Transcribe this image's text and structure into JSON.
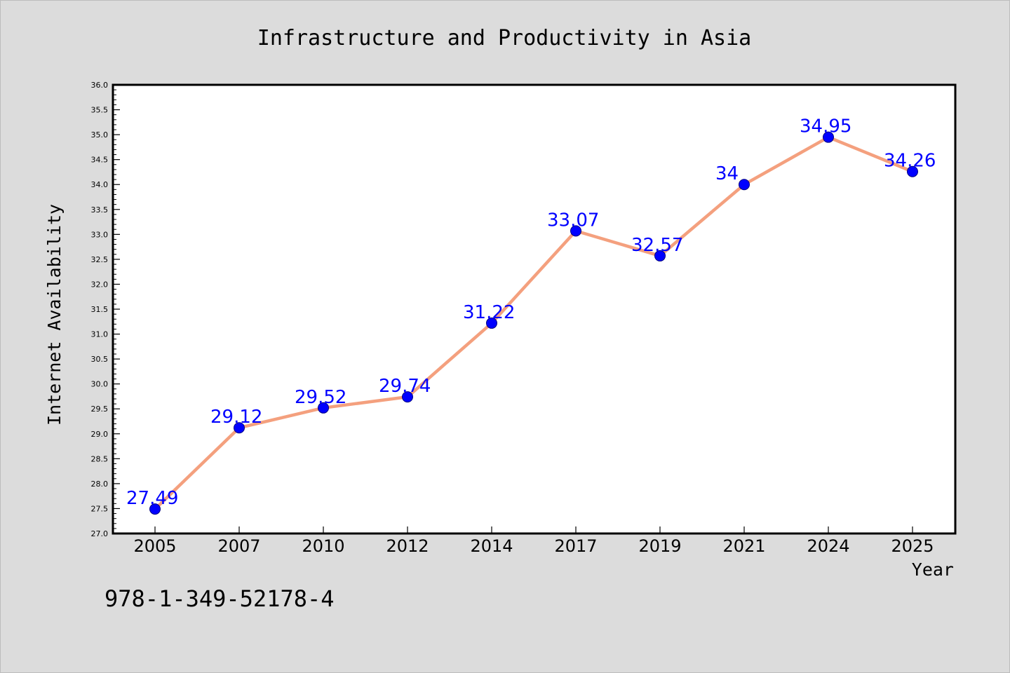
{
  "chart_data": {
    "type": "line",
    "title": "Infrastructure and Productivity in Asia",
    "xlabel": "Year",
    "ylabel": "Internet Availability",
    "categories": [
      "2005",
      "2007",
      "2010",
      "2012",
      "2014",
      "2017",
      "2019",
      "2021",
      "2024",
      "2025"
    ],
    "series": [
      {
        "values": [
          27.49,
          29.12,
          29.52,
          29.74,
          31.22,
          33.07,
          32.57,
          34,
          34.95,
          34.26
        ],
        "data_labels": [
          "27.49",
          "29.12",
          "29.52",
          "29.74",
          "31.22",
          "33.07",
          "32.57",
          "34",
          "34.95",
          "34.26"
        ]
      }
    ],
    "ylim": [
      27.0,
      36.0
    ],
    "yticks": [
      "27.0",
      "27.5",
      "28.0",
      "28.5",
      "29.0",
      "29.5",
      "30.0",
      "30.5",
      "31.0",
      "31.5",
      "32.0",
      "32.5",
      "33.0",
      "33.5",
      "34.0",
      "34.5",
      "35.0",
      "35.5",
      "36.0"
    ],
    "grid": false,
    "colors": {
      "line": "#f4a07e",
      "marker_fill": "#0000ff",
      "marker_edge": "#000080",
      "data_label": "#0000ff",
      "figure_background": "#dcdcdc",
      "plot_background": "#ffffff"
    }
  },
  "footnote": "978-1-349-52178-4"
}
